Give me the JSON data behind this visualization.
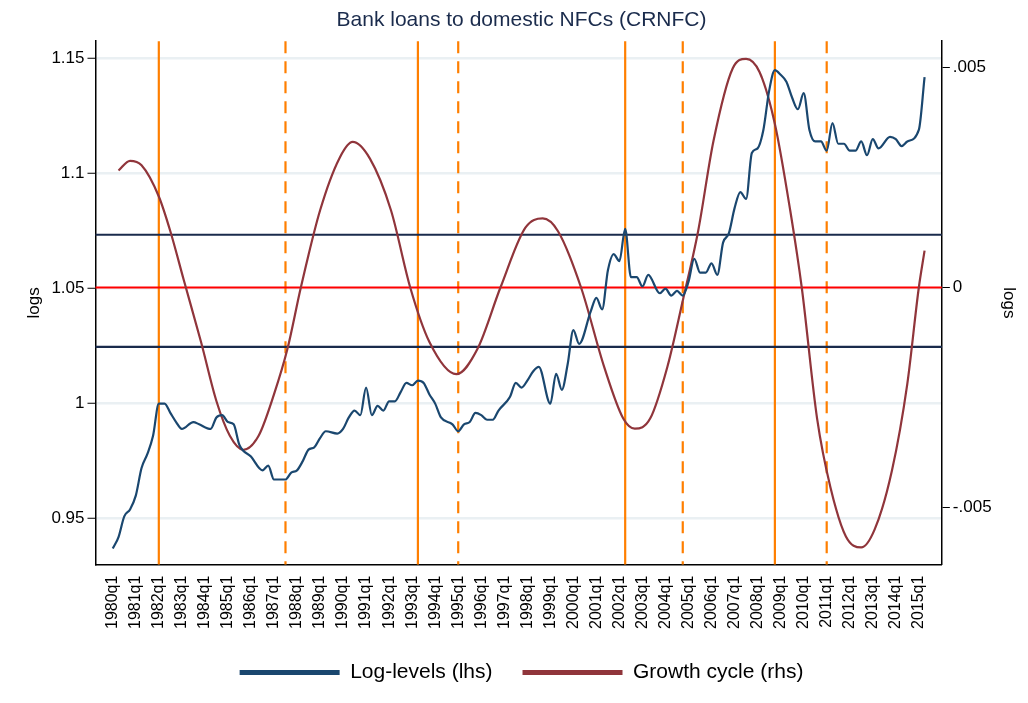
{
  "chart_data": {
    "type": "line",
    "title": "Bank loans to domestic NFCs (CRNFC)",
    "ylabel": "logs",
    "y2label": "logs",
    "xlim": [
      "1979-04",
      "2016-01"
    ],
    "xticks": [
      {
        "value": "1980-01",
        "label": "1980q1"
      },
      {
        "value": "1981-01",
        "label": "1981q1"
      },
      {
        "value": "1982-01",
        "label": "1982q1"
      },
      {
        "value": "1983-01",
        "label": "1983q1"
      },
      {
        "value": "1984-01",
        "label": "1984q1"
      },
      {
        "value": "1985-01",
        "label": "1985q1"
      },
      {
        "value": "1986-01",
        "label": "1986q1"
      },
      {
        "value": "1987-01",
        "label": "1987q1"
      },
      {
        "value": "1988-01",
        "label": "1988q1"
      },
      {
        "value": "1989-01",
        "label": "1989q1"
      },
      {
        "value": "1990-01",
        "label": "1990q1"
      },
      {
        "value": "1991-01",
        "label": "1991q1"
      },
      {
        "value": "1992-01",
        "label": "1992q1"
      },
      {
        "value": "1993-01",
        "label": "1993q1"
      },
      {
        "value": "1994-01",
        "label": "1994q1"
      },
      {
        "value": "1995-01",
        "label": "1995q1"
      },
      {
        "value": "1996-01",
        "label": "1996q1"
      },
      {
        "value": "1997-01",
        "label": "1997q1"
      },
      {
        "value": "1998-01",
        "label": "1998q1"
      },
      {
        "value": "1999-01",
        "label": "1999q1"
      },
      {
        "value": "2000-01",
        "label": "2000q1"
      },
      {
        "value": "2001-01",
        "label": "2001q1"
      },
      {
        "value": "2002-01",
        "label": "2002q1"
      },
      {
        "value": "2003-01",
        "label": "2003q1"
      },
      {
        "value": "2004-01",
        "label": "2004q1"
      },
      {
        "value": "2005-01",
        "label": "2005q1"
      },
      {
        "value": "2006-01",
        "label": "2006q1"
      },
      {
        "value": "2007-01",
        "label": "2007q1"
      },
      {
        "value": "2008-01",
        "label": "2008q1"
      },
      {
        "value": "2009-01",
        "label": "2009q1"
      },
      {
        "value": "2010-01",
        "label": "2010q1"
      },
      {
        "value": "2011-01",
        "label": "2011q1"
      },
      {
        "value": "2012-01",
        "label": "2012q1"
      },
      {
        "value": "2013-01",
        "label": "2013q1"
      },
      {
        "value": "2014-01",
        "label": "2014q1"
      },
      {
        "value": "2015-01",
        "label": "2015q1"
      }
    ],
    "ylim": [
      0.93,
      1.1576
    ],
    "yticks": [
      0.95,
      1,
      1.05,
      1.1,
      1.15
    ],
    "y2lim": [
      -0.0063,
      0.0056
    ],
    "y2ticks": [
      {
        "value": -0.005,
        "label": "-.005"
      },
      0,
      {
        "value": 0.005,
        "label": ".005"
      }
    ],
    "grid": "y",
    "legend": "bottom",
    "series": [
      {
        "name": "Log-levels (lhs)",
        "color": "#1a476f",
        "x": [
          "1980-01",
          "1980-04",
          "1980-07",
          "1980-10",
          "1981-01",
          "1981-04",
          "1981-07",
          "1981-10",
          "1982-01",
          "1982-04",
          "1982-07",
          "1982-10",
          "1983-01",
          "1983-07",
          "1983-10",
          "1984-04",
          "1984-07",
          "1984-10",
          "1985-01",
          "1985-04",
          "1985-07",
          "1986-01",
          "1986-07",
          "1986-10",
          "1987-01",
          "1987-07",
          "1987-10",
          "1988-01",
          "1988-04",
          "1988-07",
          "1988-10",
          "1989-01",
          "1989-04",
          "1989-10",
          "1990-01",
          "1990-04",
          "1990-07",
          "1990-10",
          "1991-01",
          "1991-04",
          "1991-07",
          "1991-10",
          "1992-01",
          "1992-04",
          "1992-07",
          "1992-10",
          "1993-01",
          "1993-04",
          "1993-07",
          "1993-10",
          "1994-01",
          "1994-04",
          "1994-10",
          "1995-01",
          "1995-04",
          "1995-07",
          "1995-10",
          "1996-01",
          "1996-04",
          "1996-07",
          "1996-10",
          "1997-04",
          "1997-07",
          "1997-10",
          "1998-01",
          "1998-04",
          "1998-07",
          "1999-01",
          "1999-04",
          "1999-07",
          "1999-10",
          "2000-01",
          "2000-04",
          "2000-10",
          "2001-01",
          "2001-04",
          "2001-07",
          "2001-10",
          "2002-01",
          "2002-04",
          "2002-07",
          "2002-10",
          "2003-01",
          "2003-04",
          "2003-10",
          "2004-01",
          "2004-04",
          "2004-07",
          "2004-10",
          "2005-01",
          "2005-04",
          "2005-07",
          "2005-10",
          "2006-01",
          "2006-04",
          "2006-07",
          "2006-10",
          "2007-01",
          "2007-04",
          "2007-07",
          "2007-10",
          "2008-01",
          "2008-04",
          "2008-07",
          "2008-10",
          "2009-01",
          "2009-04",
          "2009-07",
          "2009-10",
          "2010-01",
          "2010-04",
          "2010-07",
          "2010-10",
          "2011-01",
          "2011-04",
          "2011-07",
          "2011-10",
          "2012-01",
          "2012-04",
          "2012-07",
          "2012-10",
          "2013-01",
          "2013-04",
          "2013-10",
          "2014-01",
          "2014-04",
          "2014-07",
          "2015-01",
          "2015-04"
        ],
        "values": [
          0.937,
          0.942,
          0.951,
          0.954,
          0.96,
          0.972,
          0.978,
          0.986,
          1.0,
          1.0,
          0.996,
          0.992,
          0.989,
          0.992,
          0.991,
          0.989,
          0.994,
          0.995,
          0.992,
          0.991,
          0.982,
          0.977,
          0.971,
          0.973,
          0.967,
          0.967,
          0.97,
          0.971,
          0.975,
          0.98,
          0.981,
          0.985,
          0.988,
          0.987,
          0.989,
          0.994,
          0.997,
          0.995,
          1.007,
          0.995,
          0.999,
          0.997,
          1.001,
          1.001,
          1.005,
          1.009,
          1.008,
          1.01,
          1.009,
          1.004,
          1.0,
          0.994,
          0.991,
          0.988,
          0.991,
          0.992,
          0.996,
          0.995,
          0.993,
          0.993,
          0.997,
          1.003,
          1.009,
          1.007,
          1.01,
          1.014,
          1.016,
          1.0,
          1.013,
          1.006,
          1.017,
          1.032,
          1.026,
          1.04,
          1.046,
          1.041,
          1.058,
          1.065,
          1.062,
          1.076,
          1.055,
          1.055,
          1.051,
          1.056,
          1.048,
          1.05,
          1.047,
          1.049,
          1.047,
          1.053,
          1.063,
          1.057,
          1.057,
          1.061,
          1.056,
          1.07,
          1.074,
          1.085,
          1.092,
          1.089,
          1.109,
          1.111,
          1.119,
          1.136,
          1.145,
          1.143,
          1.14,
          1.133,
          1.128,
          1.135,
          1.119,
          1.114,
          1.114,
          1.11,
          1.122,
          1.113,
          1.113,
          1.11,
          1.11,
          1.114,
          1.108,
          1.115,
          1.111,
          1.116,
          1.115,
          1.112,
          1.114,
          1.119,
          1.142
        ]
      },
      {
        "name": "Growth cycle (rhs)",
        "color": "#90353b",
        "axis": "y2",
        "x": [
          "1980-04",
          "1980-10",
          "1981-04",
          "1982-01",
          "1982-07",
          "1983-02",
          "1983-11",
          "1984-07",
          "1985-02",
          "1985-09",
          "1986-05",
          "1987-01",
          "1987-08",
          "1988-03",
          "1989-01",
          "1989-11",
          "1990-06",
          "1991-03",
          "1992-02",
          "1992-12",
          "1993-10",
          "1994-12",
          "1995-11",
          "1996-11",
          "1997-12",
          "1998-09",
          "1999-05",
          "2000-05",
          "2001-05",
          "2002-03",
          "2002-09",
          "2003-05",
          "2004-02",
          "2004-10",
          "2005-06",
          "2006-02",
          "2006-12",
          "2007-07",
          "2008-02",
          "2008-10",
          "2009-06",
          "2009-12",
          "2010-08",
          "2011-03",
          "2011-11",
          "2012-07",
          "2013-02",
          "2013-11",
          "2014-07",
          "2015-01",
          "2015-04"
        ],
        "values": [
          0.00266,
          0.00288,
          0.00278,
          0.00207,
          0.00128,
          0.00017,
          -0.00124,
          -0.00258,
          -0.00337,
          -0.00369,
          -0.00337,
          -0.00243,
          -0.0014,
          0,
          0.00175,
          0.00293,
          0.00331,
          0.00293,
          0.00175,
          0,
          -0.00124,
          -0.00197,
          -0.0014,
          0,
          0.00136,
          0.00157,
          0.00128,
          0,
          -0.0018,
          -0.00298,
          -0.00321,
          -0.00298,
          -0.0018,
          -0.0003,
          0.00128,
          0.00333,
          0.00498,
          0.0052,
          0.0049,
          0.00372,
          0.00175,
          0,
          -0.00298,
          -0.00455,
          -0.00566,
          -0.00591,
          -0.0055,
          -0.00416,
          -0.00219,
          0,
          0.00084
        ]
      }
    ],
    "ref_lines": [
      {
        "axis": "x",
        "value": "1982-01",
        "color": "#ff7f00",
        "line_style": "solid"
      },
      {
        "axis": "x",
        "value": "1987-07",
        "color": "#ff7f00",
        "line_style": "dashed"
      },
      {
        "axis": "x",
        "value": "1993-04",
        "color": "#ff7f00",
        "line_style": "solid"
      },
      {
        "axis": "x",
        "value": "1995-01",
        "color": "#ff7f00",
        "line_style": "dashed"
      },
      {
        "axis": "x",
        "value": "2002-04",
        "color": "#ff7f00",
        "line_style": "solid"
      },
      {
        "axis": "x",
        "value": "2004-10",
        "color": "#ff7f00",
        "line_style": "dashed"
      },
      {
        "axis": "x",
        "value": "2008-10",
        "color": "#ff7f00",
        "line_style": "solid"
      },
      {
        "axis": "x",
        "value": "2011-01",
        "color": "#ff7f00",
        "line_style": "dashed"
      },
      {
        "axis": "y2",
        "value": 0.0012,
        "color": "#1a2b4c",
        "line_style": "solid"
      },
      {
        "axis": "y2",
        "value": 0,
        "color": "#ff0000",
        "line_style": "solid"
      },
      {
        "axis": "y2",
        "value": -0.00135,
        "color": "#1a2b4c",
        "line_style": "solid"
      }
    ]
  }
}
